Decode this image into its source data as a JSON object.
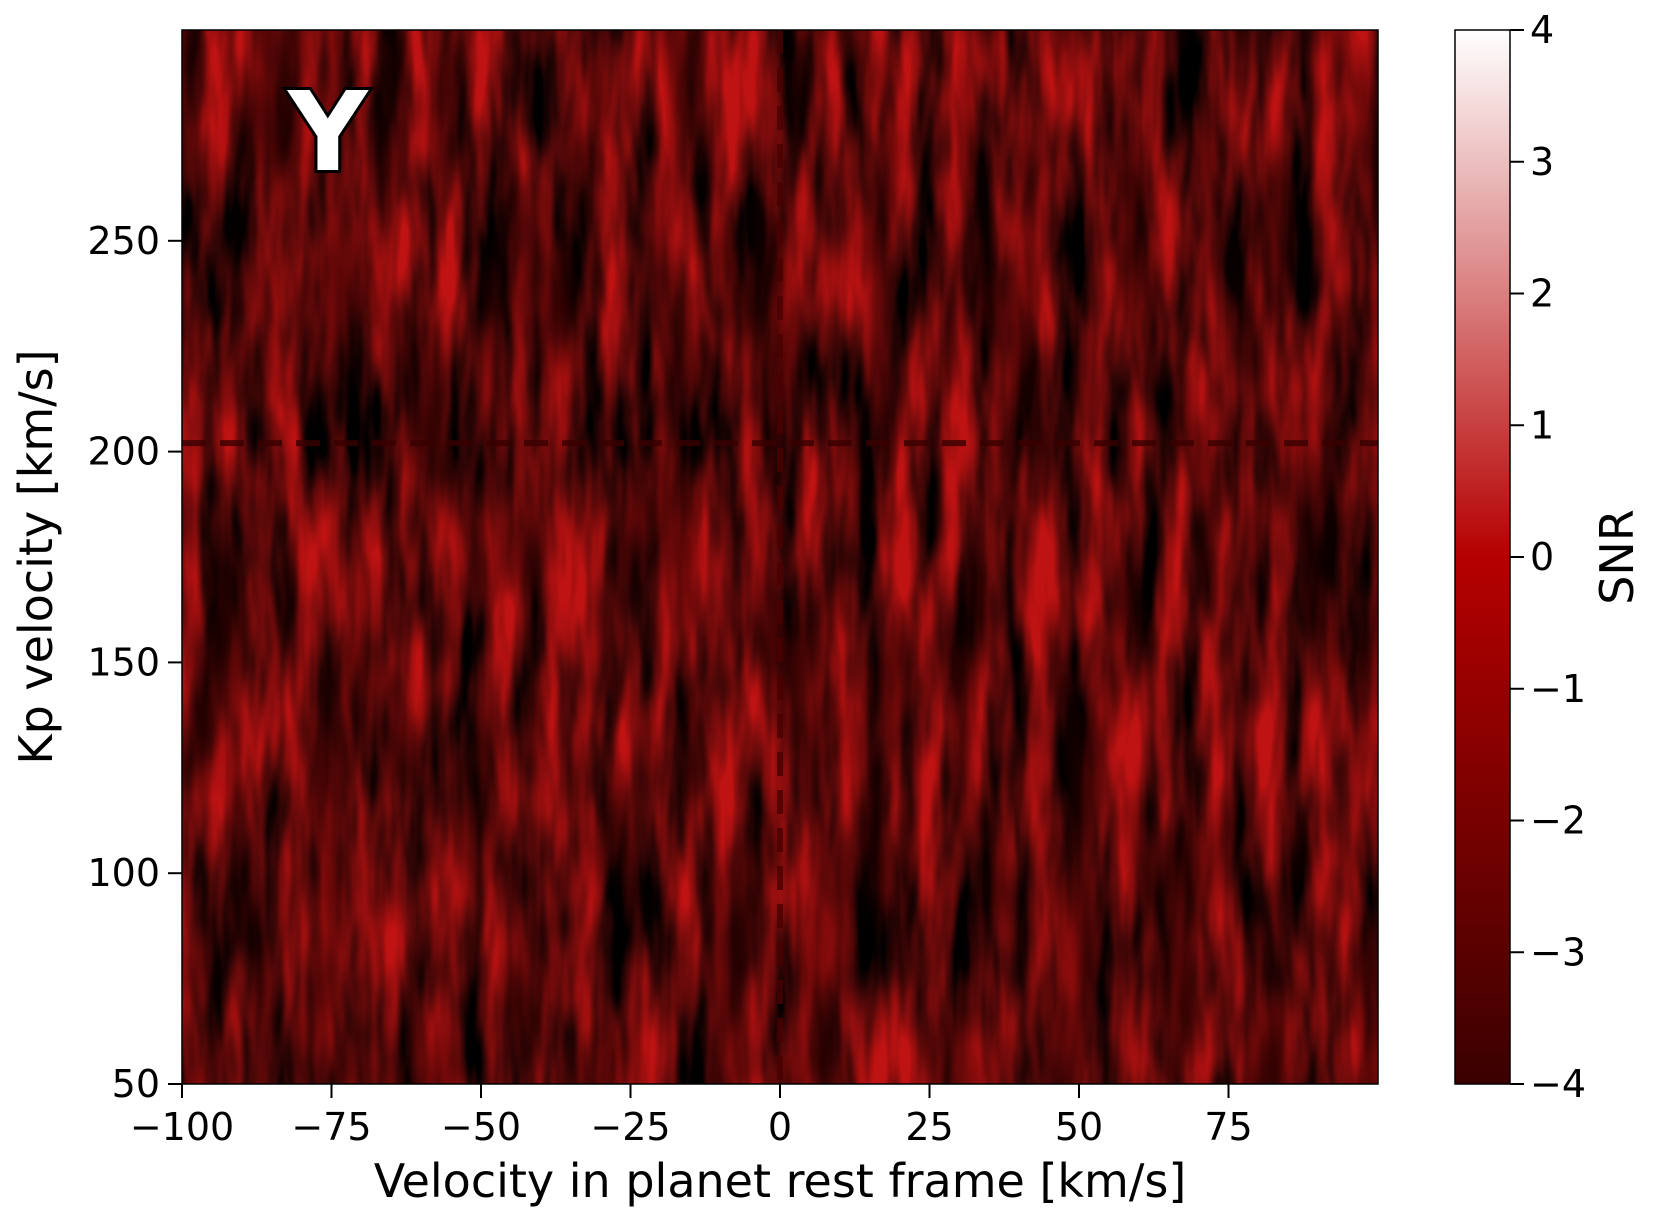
{
  "chart_data": {
    "type": "heatmap",
    "panel_label": "Y",
    "xlabel": "Velocity in planet rest frame [km/s]",
    "ylabel": "Kp velocity [km/s]",
    "xlim": [
      -100,
      100
    ],
    "ylim": [
      50,
      300
    ],
    "x_ticks": [
      -100,
      -75,
      -50,
      -25,
      0,
      25,
      50,
      75
    ],
    "x_tick_labels": [
      "−100",
      "−75",
      "−50",
      "−25",
      "0",
      "25",
      "50",
      "75"
    ],
    "y_ticks": [
      50,
      100,
      150,
      200,
      250
    ],
    "y_tick_labels": [
      "50",
      "100",
      "150",
      "200",
      "250"
    ],
    "marker_lines": {
      "x": 0,
      "y": 202
    },
    "colorbar": {
      "label": "SNR",
      "range": [
        -4,
        4
      ],
      "ticks": [
        -4,
        -3,
        -2,
        -1,
        0,
        1,
        2,
        3,
        4
      ],
      "tick_labels": [
        "−4",
        "−3",
        "−2",
        "−1",
        "0",
        "1",
        "2",
        "3",
        "4"
      ],
      "colors": [
        "#3a0000",
        "#b50000",
        "#ffffff"
      ]
    }
  }
}
